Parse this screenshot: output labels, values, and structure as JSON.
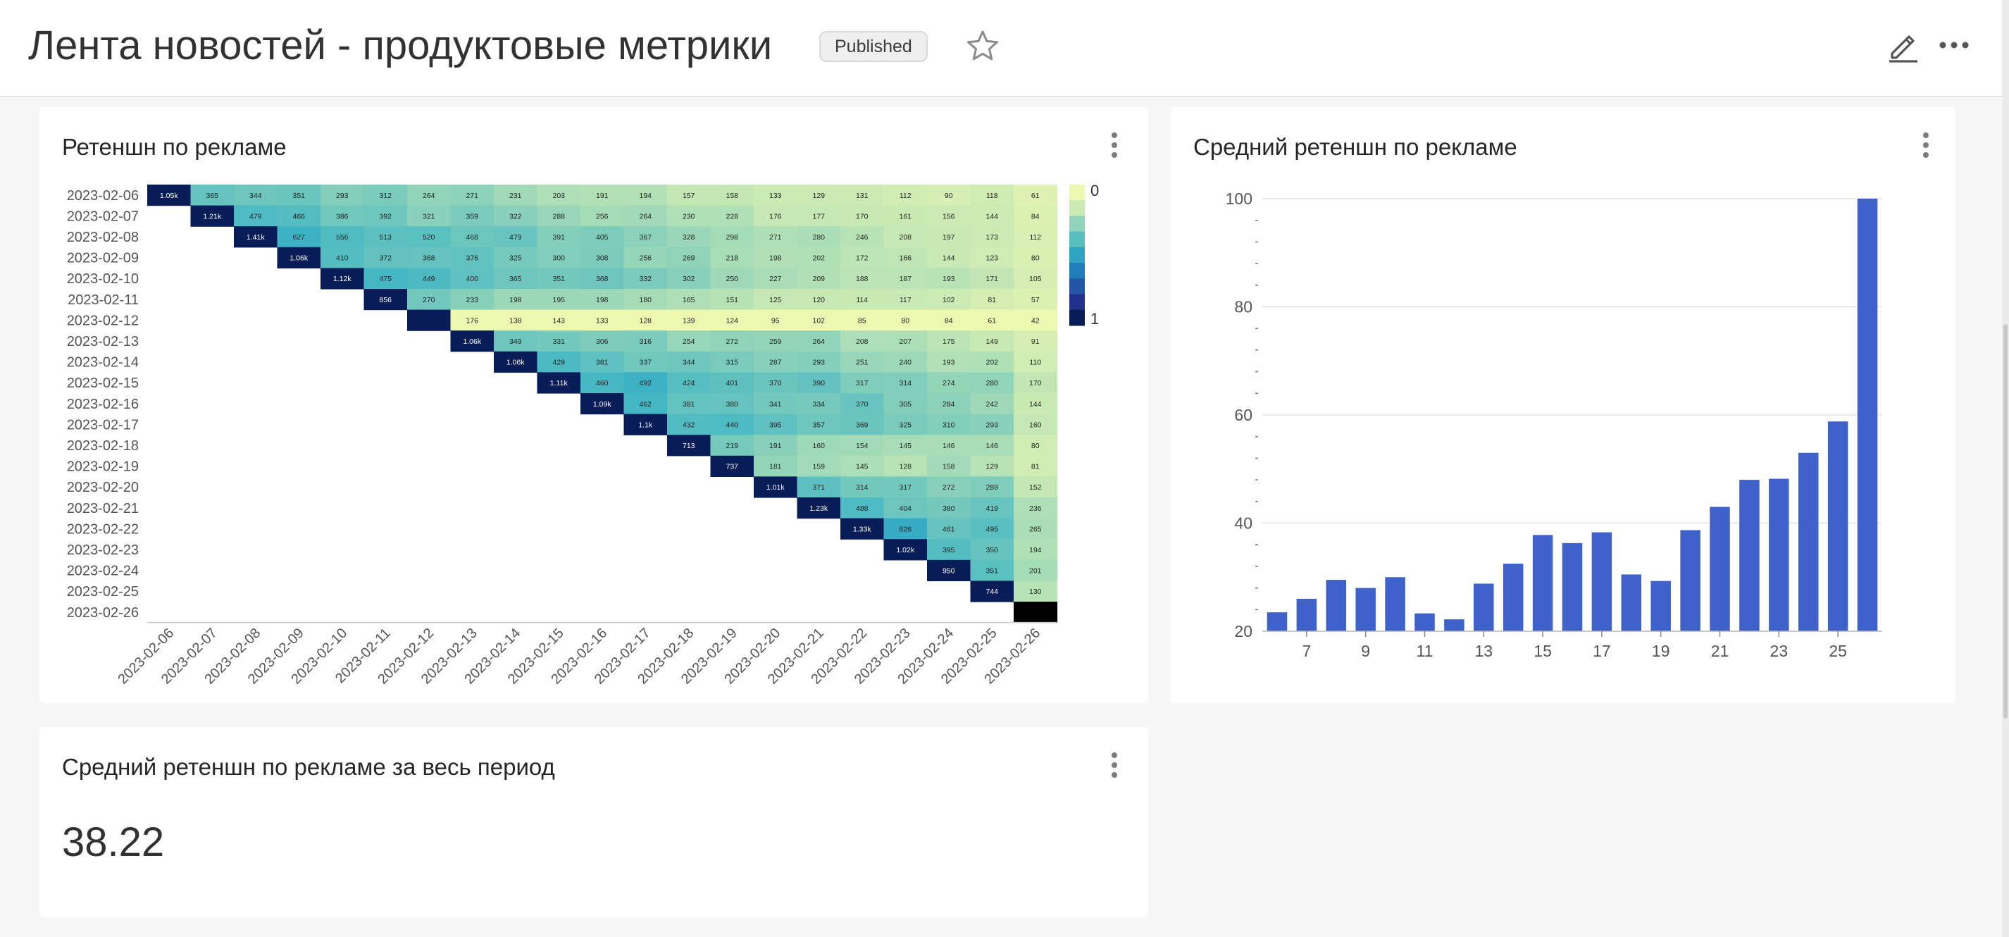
{
  "header": {
    "title": "Лента новостей - продуктовые метрики",
    "status": "Published",
    "icons": {
      "favorite": "star-icon",
      "edit": "pencil-icon",
      "more": "more-horizontal-icon"
    }
  },
  "cards": {
    "heatmap": {
      "title": "Ретеншн по рекламе",
      "menu_icon": "kebab-icon"
    },
    "bar": {
      "title": "Средний ретеншн по рекламе",
      "menu_icon": "kebab-icon"
    },
    "big_number": {
      "title": "Средний ретеншн по рекламе за весь период",
      "value": "38.22",
      "menu_icon": "kebab-icon"
    }
  },
  "colors": {
    "bar": "#3e62c9",
    "heatmap_low": "#edf8b1",
    "heatmap_high": "#081d58"
  },
  "chart_data": [
    {
      "type": "heatmap",
      "title": "Ретеншн по рекламе",
      "row_labels": [
        "2023-02-06",
        "2023-02-07",
        "2023-02-08",
        "2023-02-09",
        "2023-02-10",
        "2023-02-11",
        "2023-02-12",
        "2023-02-13",
        "2023-02-14",
        "2023-02-15",
        "2023-02-16",
        "2023-02-17",
        "2023-02-18",
        "2023-02-19",
        "2023-02-20",
        "2023-02-21",
        "2023-02-22",
        "2023-02-23",
        "2023-02-24",
        "2023-02-25",
        "2023-02-26"
      ],
      "col_labels": [
        "2023-02-06",
        "2023-02-07",
        "2023-02-08",
        "2023-02-09",
        "2023-02-10",
        "2023-02-11",
        "2023-02-12",
        "2023-02-13",
        "2023-02-14",
        "2023-02-15",
        "2023-02-16",
        "2023-02-17",
        "2023-02-18",
        "2023-02-19",
        "2023-02-20",
        "2023-02-21",
        "2023-02-22",
        "2023-02-23",
        "2023-02-24",
        "2023-02-25",
        "2023-02-26"
      ],
      "rows": [
        [
          "1.05k",
          "365",
          "344",
          "351",
          "293",
          "312",
          "264",
          "271",
          "231",
          "203",
          "191",
          "194",
          "157",
          "158",
          "133",
          "129",
          "131",
          "112",
          "90",
          "118",
          "61"
        ],
        [
          "",
          "1.21k",
          "479",
          "466",
          "386",
          "392",
          "321",
          "359",
          "322",
          "288",
          "256",
          "264",
          "230",
          "228",
          "176",
          "177",
          "170",
          "161",
          "156",
          "144",
          "84"
        ],
        [
          "",
          "",
          "1.41k",
          "627",
          "556",
          "513",
          "520",
          "468",
          "479",
          "391",
          "405",
          "367",
          "328",
          "298",
          "271",
          "280",
          "246",
          "208",
          "197",
          "173",
          "112"
        ],
        [
          "",
          "",
          "",
          "1.06k",
          "410",
          "372",
          "368",
          "376",
          "325",
          "300",
          "308",
          "256",
          "269",
          "218",
          "198",
          "202",
          "172",
          "166",
          "144",
          "123",
          "80"
        ],
        [
          "",
          "",
          "",
          "",
          "1.12k",
          "475",
          "449",
          "400",
          "365",
          "351",
          "368",
          "332",
          "302",
          "250",
          "227",
          "209",
          "188",
          "187",
          "193",
          "171",
          "105"
        ],
        [
          "",
          "",
          "",
          "",
          "",
          "856",
          "270",
          "233",
          "198",
          "195",
          "198",
          "180",
          "165",
          "151",
          "125",
          "120",
          "114",
          "117",
          "102",
          "81",
          "57"
        ],
        [
          "",
          "",
          "",
          "",
          "",
          "",
          "",
          "176",
          "138",
          "143",
          "133",
          "128",
          "139",
          "124",
          "95",
          "102",
          "85",
          "80",
          "84",
          "61",
          "42"
        ],
        [
          "",
          "",
          "",
          "",
          "",
          "",
          "",
          "1.06k",
          "349",
          "331",
          "306",
          "316",
          "254",
          "272",
          "259",
          "264",
          "208",
          "207",
          "175",
          "149",
          "91"
        ],
        [
          "",
          "",
          "",
          "",
          "",
          "",
          "",
          "",
          "1.06k",
          "429",
          "381",
          "337",
          "344",
          "315",
          "287",
          "293",
          "251",
          "240",
          "193",
          "202",
          "110"
        ],
        [
          "",
          "",
          "",
          "",
          "",
          "",
          "",
          "",
          "",
          "1.11k",
          "460",
          "492",
          "424",
          "401",
          "370",
          "390",
          "317",
          "314",
          "274",
          "280",
          "170"
        ],
        [
          "",
          "",
          "",
          "",
          "",
          "",
          "",
          "",
          "",
          "",
          "1.09k",
          "462",
          "381",
          "380",
          "341",
          "334",
          "370",
          "305",
          "284",
          "242",
          "144"
        ],
        [
          "",
          "",
          "",
          "",
          "",
          "",
          "",
          "",
          "",
          "",
          "",
          "1.1k",
          "432",
          "440",
          "395",
          "357",
          "369",
          "325",
          "310",
          "293",
          "160"
        ],
        [
          "",
          "",
          "",
          "",
          "",
          "",
          "",
          "",
          "",
          "",
          "",
          "",
          "713",
          "219",
          "191",
          "160",
          "154",
          "145",
          "146",
          "146",
          "80"
        ],
        [
          "",
          "",
          "",
          "",
          "",
          "",
          "",
          "",
          "",
          "",
          "",
          "",
          "",
          "737",
          "181",
          "159",
          "145",
          "128",
          "158",
          "129",
          "81"
        ],
        [
          "",
          "",
          "",
          "",
          "",
          "",
          "",
          "",
          "",
          "",
          "",
          "",
          "",
          "",
          "1.01k",
          "371",
          "314",
          "317",
          "272",
          "289",
          "152"
        ],
        [
          "",
          "",
          "",
          "",
          "",
          "",
          "",
          "",
          "",
          "",
          "",
          "",
          "",
          "",
          "",
          "1.23k",
          "488",
          "404",
          "380",
          "419",
          "236"
        ],
        [
          "",
          "",
          "",
          "",
          "",
          "",
          "",
          "",
          "",
          "",
          "",
          "",
          "",
          "",
          "",
          "",
          "1.33k",
          "626",
          "461",
          "495",
          "265"
        ],
        [
          "",
          "",
          "",
          "",
          "",
          "",
          "",
          "",
          "",
          "",
          "",
          "",
          "",
          "",
          "",
          "",
          "",
          "1.02k",
          "395",
          "350",
          "194"
        ],
        [
          "",
          "",
          "",
          "",
          "",
          "",
          "",
          "",
          "",
          "",
          "",
          "",
          "",
          "",
          "",
          "",
          "",
          "",
          "950",
          "351",
          "201"
        ],
        [
          "",
          "",
          "",
          "",
          "",
          "",
          "",
          "",
          "",
          "",
          "",
          "",
          "",
          "",
          "",
          "",
          "",
          "",
          "",
          "744",
          "130"
        ],
        [
          "",
          "",
          "",
          "",
          "",
          "",
          "",
          "",
          "",
          "",
          "",
          "",
          "",
          "",
          "",
          "",
          "",
          "",
          "",
          "",
          ""
        ]
      ],
      "legend": {
        "min": "0",
        "max": "1"
      },
      "shaded_blank_cells": [
        [
          6,
          6
        ],
        [
          20,
          20
        ]
      ]
    },
    {
      "type": "bar",
      "title": "Средний ретеншн по рекламе",
      "x": [
        6,
        7,
        8,
        9,
        10,
        11,
        12,
        13,
        14,
        15,
        16,
        17,
        18,
        19,
        20,
        21,
        22,
        23,
        24,
        25,
        26
      ],
      "values": [
        23.5,
        26,
        29.5,
        28,
        30,
        23.3,
        22.2,
        28.8,
        32.5,
        37.8,
        36.3,
        38.3,
        30.5,
        29.3,
        38.7,
        43,
        48,
        48.2,
        53,
        58.8,
        100
      ],
      "x_tick_labels": [
        "7",
        "9",
        "11",
        "13",
        "15",
        "17",
        "19",
        "21",
        "23",
        "25"
      ],
      "y_ticks": [
        20,
        40,
        60,
        80,
        100
      ],
      "ylim": [
        20,
        100
      ],
      "grid": true
    }
  ]
}
